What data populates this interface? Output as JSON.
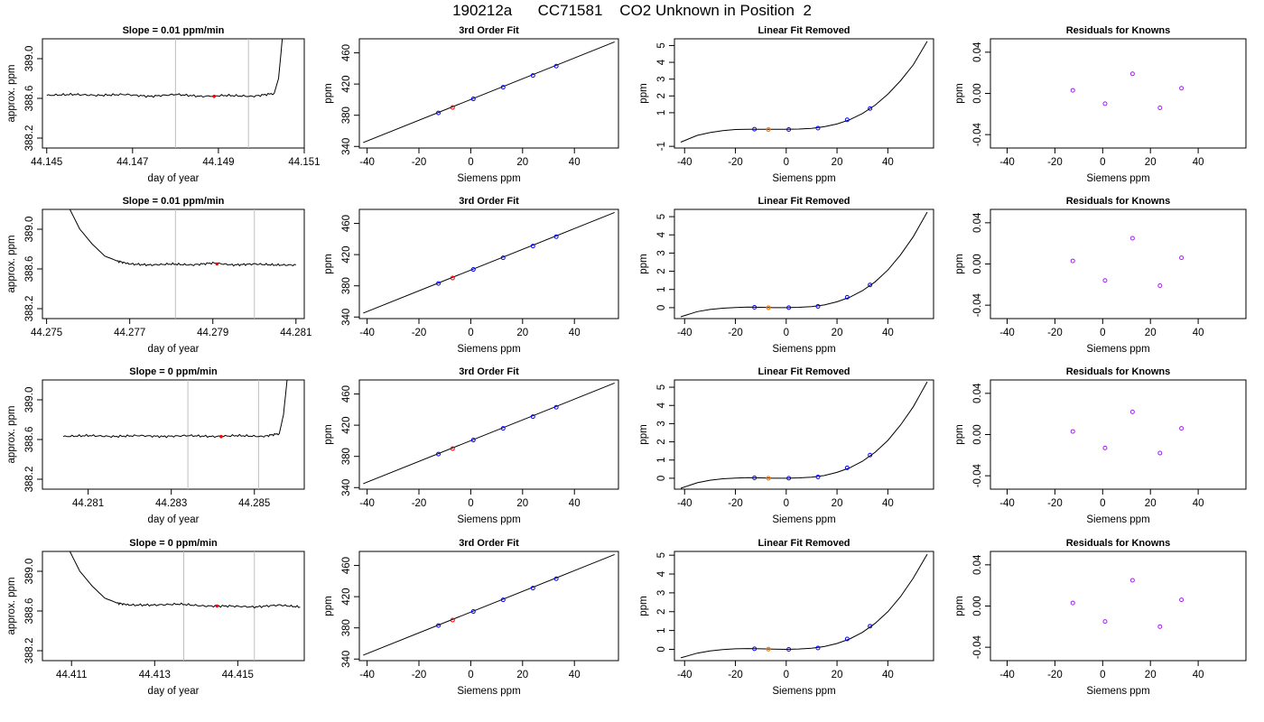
{
  "figure": {
    "title": "190212a      CC71581    CO2 Unknown in Position  2"
  },
  "style": {
    "line_color": "#000000",
    "grid_color": "#bebebe",
    "unknown_point_color": "#ff0000",
    "removed_unknown_color": "#ff7f00",
    "known_point_color": "#0000ff",
    "residual_point_color": "#a020f0"
  },
  "chart_data": [
    {
      "type": "line",
      "panel": "trace",
      "row": 1,
      "title": "Slope =  0.01  ppm/min",
      "xlabel": "day of year",
      "ylabel": "approx. ppm",
      "xlim": [
        44.1449,
        44.151
      ],
      "ylim": [
        388.1,
        389.2
      ],
      "xticks": [
        44.145,
        44.147,
        44.149,
        44.151
      ],
      "yticks": [
        388.2,
        388.6,
        389.0
      ],
      "vlines": [
        44.148,
        44.1497
      ],
      "unknown_point": [
        44.1489,
        388.62
      ],
      "series": [
        {
          "x": [
            44.145,
            44.1456,
            44.1462,
            44.1468,
            44.1474,
            44.148,
            44.1486,
            44.1492,
            44.1498,
            44.1503,
            44.1504,
            44.1505
          ],
          "y": [
            388.63,
            388.64,
            388.63,
            388.64,
            388.62,
            388.64,
            388.62,
            388.63,
            388.62,
            388.65,
            388.8,
            389.25
          ]
        }
      ]
    },
    {
      "type": "line",
      "panel": "fit",
      "row": 1,
      "title": "3rd Order Fit",
      "xlabel": "Siemens ppm",
      "ylabel": "ppm",
      "xlim": [
        -43,
        57
      ],
      "ylim": [
        338,
        478
      ],
      "xticks": [
        -40,
        -20,
        0,
        20,
        40
      ],
      "yticks": [
        340,
        380,
        420,
        460
      ],
      "line": {
        "x": [
          -41.5,
          55.5
        ],
        "y": [
          345,
          474
        ]
      },
      "known_points": {
        "x": [
          -12.5,
          1,
          12.5,
          24,
          33
        ],
        "y": [
          383,
          401,
          416,
          431,
          443
        ]
      },
      "unknown_point": [
        -7,
        390
      ]
    },
    {
      "type": "line",
      "panel": "linear_removed",
      "row": 1,
      "title": "Linear Fit Removed",
      "xlabel": "Siemens ppm",
      "ylabel": "ppm",
      "xlim": [
        -44,
        58
      ],
      "ylim": [
        -1.1,
        5.4
      ],
      "xticks": [
        -40,
        -20,
        0,
        20,
        40
      ],
      "yticks": [
        -1,
        1,
        2,
        3,
        4,
        5
      ],
      "curve": {
        "x": [
          -41.5,
          -35,
          -30,
          -25,
          -20,
          -15,
          -10,
          -5,
          0,
          5,
          10,
          15,
          20,
          25,
          30,
          35,
          40,
          45,
          50,
          55.5
        ],
        "y": [
          -0.75,
          -0.35,
          -0.18,
          -0.07,
          0.0,
          0.02,
          0.02,
          0.01,
          0.01,
          0.03,
          0.07,
          0.17,
          0.33,
          0.58,
          0.95,
          1.45,
          2.1,
          2.9,
          3.85,
          5.25
        ]
      },
      "known_points": {
        "x": [
          -12.5,
          1,
          12.5,
          24,
          33
        ],
        "y": [
          0.02,
          0.0,
          0.08,
          0.58,
          1.25
        ]
      },
      "unknown_point": [
        -7,
        0.0
      ]
    },
    {
      "type": "scatter",
      "panel": "residuals",
      "row": 1,
      "title": "Residuals for Knowns",
      "xlabel": "Siemens ppm",
      "ylabel": "ppm",
      "xlim": [
        -47,
        60
      ],
      "ylim": [
        -0.053,
        0.053
      ],
      "xticks": [
        -40,
        -20,
        0,
        20,
        40
      ],
      "yticks": [
        -0.04,
        0.0,
        0.04
      ],
      "points": {
        "x": [
          -12.5,
          1,
          12.5,
          24,
          33
        ],
        "y": [
          0.003,
          -0.01,
          0.019,
          -0.014,
          0.005
        ]
      }
    },
    {
      "type": "line",
      "panel": "trace",
      "row": 2,
      "title": "Slope =  0.01  ppm/min",
      "xlabel": "day of year",
      "ylabel": "approx. ppm",
      "xlim": [
        44.2749,
        44.2812
      ],
      "ylim": [
        388.1,
        389.2
      ],
      "xticks": [
        44.275,
        44.277,
        44.279,
        44.281
      ],
      "yticks": [
        388.2,
        388.6,
        389.0
      ],
      "vlines": [
        44.2781,
        44.28
      ],
      "unknown_point": [
        44.2791,
        388.65
      ],
      "series": [
        {
          "x": [
            44.2755,
            44.2758,
            44.2761,
            44.2764,
            44.2767,
            44.277,
            44.2775,
            44.278,
            44.2785,
            44.279,
            44.2795,
            44.28,
            44.2805,
            44.281
          ],
          "y": [
            389.25,
            389.0,
            388.85,
            388.73,
            388.68,
            388.65,
            388.64,
            388.65,
            388.64,
            388.66,
            388.64,
            388.65,
            388.64,
            388.64
          ]
        }
      ]
    },
    {
      "type": "line",
      "panel": "fit",
      "row": 2,
      "title": "3rd Order Fit",
      "xlabel": "Siemens ppm",
      "ylabel": "ppm",
      "xlim": [
        -43,
        57
      ],
      "ylim": [
        338,
        478
      ],
      "xticks": [
        -40,
        -20,
        0,
        20,
        40
      ],
      "yticks": [
        340,
        380,
        420,
        460
      ],
      "line": {
        "x": [
          -41.5,
          55.5
        ],
        "y": [
          345,
          474
        ]
      },
      "known_points": {
        "x": [
          -12.5,
          1,
          12.5,
          24,
          33
        ],
        "y": [
          383,
          401,
          416,
          431,
          443
        ]
      },
      "unknown_point": [
        -7,
        390
      ]
    },
    {
      "type": "line",
      "panel": "linear_removed",
      "row": 2,
      "title": "Linear Fit Removed",
      "xlabel": "Siemens ppm",
      "ylabel": "ppm",
      "xlim": [
        -44,
        58
      ],
      "ylim": [
        -0.6,
        5.4
      ],
      "xticks": [
        -40,
        -20,
        0,
        20,
        40
      ],
      "yticks": [
        0,
        1,
        2,
        3,
        4,
        5
      ],
      "curve": {
        "x": [
          -41.5,
          -35,
          -30,
          -25,
          -20,
          -15,
          -10,
          -5,
          0,
          5,
          10,
          15,
          20,
          25,
          30,
          35,
          40,
          45,
          50,
          55.5
        ],
        "y": [
          -0.5,
          -0.22,
          -0.1,
          -0.03,
          0.01,
          0.03,
          0.02,
          0.0,
          0.0,
          0.02,
          0.06,
          0.15,
          0.32,
          0.57,
          0.93,
          1.42,
          2.07,
          2.9,
          3.9,
          5.25
        ]
      },
      "known_points": {
        "x": [
          -12.5,
          1,
          12.5,
          24,
          33
        ],
        "y": [
          0.02,
          0.0,
          0.07,
          0.57,
          1.25
        ]
      },
      "unknown_point": [
        -7,
        0.0
      ]
    },
    {
      "type": "scatter",
      "panel": "residuals",
      "row": 2,
      "title": "Residuals for Knowns",
      "xlabel": "Siemens ppm",
      "ylabel": "ppm",
      "xlim": [
        -47,
        60
      ],
      "ylim": [
        -0.053,
        0.053
      ],
      "xticks": [
        -40,
        -20,
        0,
        20,
        40
      ],
      "yticks": [
        -0.04,
        0.0,
        0.04
      ],
      "points": {
        "x": [
          -12.5,
          1,
          12.5,
          24,
          33
        ],
        "y": [
          0.003,
          -0.016,
          0.025,
          -0.021,
          0.006
        ]
      }
    },
    {
      "type": "line",
      "panel": "trace",
      "row": 3,
      "title": "Slope =  0  ppm/min",
      "xlabel": "day of year",
      "ylabel": "approx. ppm",
      "xlim": [
        44.2799,
        44.2862
      ],
      "ylim": [
        388.1,
        389.2
      ],
      "xticks": [
        44.281,
        44.283,
        44.285
      ],
      "yticks": [
        388.2,
        388.6,
        389.0
      ],
      "vlines": [
        44.2834,
        44.2851
      ],
      "unknown_point": [
        44.2842,
        388.63
      ],
      "series": [
        {
          "x": [
            44.2804,
            44.281,
            44.2816,
            44.2822,
            44.2828,
            44.2834,
            44.284,
            44.2846,
            44.2852,
            44.2856,
            44.2857,
            44.2858
          ],
          "y": [
            388.63,
            388.64,
            388.63,
            388.64,
            388.63,
            388.64,
            388.63,
            388.64,
            388.63,
            388.66,
            388.85,
            389.25
          ]
        }
      ]
    },
    {
      "type": "line",
      "panel": "fit",
      "row": 3,
      "title": "3rd Order Fit",
      "xlabel": "Siemens ppm",
      "ylabel": "ppm",
      "xlim": [
        -43,
        57
      ],
      "ylim": [
        338,
        478
      ],
      "xticks": [
        -40,
        -20,
        0,
        20,
        40
      ],
      "yticks": [
        340,
        380,
        420,
        460
      ],
      "line": {
        "x": [
          -41.5,
          55.5
        ],
        "y": [
          345,
          474
        ]
      },
      "known_points": {
        "x": [
          -12.5,
          1,
          12.5,
          24,
          33
        ],
        "y": [
          383,
          401,
          416,
          431,
          443
        ]
      },
      "unknown_point": [
        -7,
        390
      ]
    },
    {
      "type": "line",
      "panel": "linear_removed",
      "row": 3,
      "title": "Linear Fit Removed",
      "xlabel": "Siemens ppm",
      "ylabel": "ppm",
      "xlim": [
        -44,
        58
      ],
      "ylim": [
        -0.6,
        5.4
      ],
      "xticks": [
        -40,
        -20,
        0,
        20,
        40
      ],
      "yticks": [
        0,
        1,
        2,
        3,
        4,
        5
      ],
      "curve": {
        "x": [
          -41.5,
          -35,
          -30,
          -25,
          -20,
          -15,
          -10,
          -5,
          0,
          5,
          10,
          15,
          20,
          25,
          30,
          35,
          40,
          45,
          50,
          55.5
        ],
        "y": [
          -0.55,
          -0.25,
          -0.11,
          -0.03,
          0.01,
          0.03,
          0.02,
          0.0,
          0.0,
          0.02,
          0.06,
          0.15,
          0.32,
          0.57,
          0.93,
          1.43,
          2.08,
          2.92,
          3.92,
          5.3
        ]
      },
      "known_points": {
        "x": [
          -12.5,
          1,
          12.5,
          24,
          33
        ],
        "y": [
          0.02,
          0.0,
          0.07,
          0.57,
          1.27
        ]
      },
      "unknown_point": [
        -7,
        0.0
      ]
    },
    {
      "type": "scatter",
      "panel": "residuals",
      "row": 3,
      "title": "Residuals for Knowns",
      "xlabel": "Siemens ppm",
      "ylabel": "ppm",
      "xlim": [
        -47,
        60
      ],
      "ylim": [
        -0.053,
        0.053
      ],
      "xticks": [
        -40,
        -20,
        0,
        20,
        40
      ],
      "yticks": [
        -0.04,
        0.0,
        0.04
      ],
      "points": {
        "x": [
          -12.5,
          1,
          12.5,
          24,
          33
        ],
        "y": [
          0.003,
          -0.013,
          0.022,
          -0.018,
          0.006
        ]
      }
    },
    {
      "type": "line",
      "panel": "trace",
      "row": 4,
      "title": "Slope =  0  ppm/min",
      "xlabel": "day of year",
      "ylabel": "approx. ppm",
      "xlim": [
        44.4103,
        44.4166
      ],
      "ylim": [
        388.1,
        389.2
      ],
      "xticks": [
        44.411,
        44.413,
        44.415
      ],
      "yticks": [
        388.2,
        388.6,
        389.0
      ],
      "vlines": [
        44.4137,
        44.4154
      ],
      "unknown_point": [
        44.4145,
        388.65
      ],
      "series": [
        {
          "x": [
            44.4109,
            44.4112,
            44.4115,
            44.4118,
            44.4121,
            44.4124,
            44.413,
            44.4136,
            44.4142,
            44.4148,
            44.4154,
            44.416,
            44.4165
          ],
          "y": [
            389.25,
            389.0,
            388.85,
            388.73,
            388.68,
            388.66,
            388.66,
            388.67,
            388.65,
            388.65,
            388.64,
            388.66,
            388.64
          ]
        }
      ]
    },
    {
      "type": "line",
      "panel": "fit",
      "row": 4,
      "title": "3rd Order Fit",
      "xlabel": "Siemens ppm",
      "ylabel": "ppm",
      "xlim": [
        -43,
        57
      ],
      "ylim": [
        338,
        478
      ],
      "xticks": [
        -40,
        -20,
        0,
        20,
        40
      ],
      "yticks": [
        340,
        380,
        420,
        460
      ],
      "line": {
        "x": [
          -41.5,
          55.5
        ],
        "y": [
          345,
          474
        ]
      },
      "known_points": {
        "x": [
          -12.5,
          1,
          12.5,
          24,
          33
        ],
        "y": [
          383,
          401,
          416,
          431,
          443
        ]
      },
      "unknown_point": [
        -7,
        390
      ]
    },
    {
      "type": "line",
      "panel": "linear_removed",
      "row": 4,
      "title": "Linear Fit Removed",
      "xlabel": "Siemens ppm",
      "ylabel": "ppm",
      "xlim": [
        -44,
        58
      ],
      "ylim": [
        -0.6,
        5.2
      ],
      "xticks": [
        -40,
        -20,
        0,
        20,
        40
      ],
      "yticks": [
        0,
        1,
        2,
        3,
        4,
        5
      ],
      "curve": {
        "x": [
          -41.5,
          -35,
          -30,
          -25,
          -20,
          -15,
          -10,
          -5,
          0,
          5,
          10,
          15,
          20,
          25,
          30,
          35,
          40,
          45,
          50,
          55.5
        ],
        "y": [
          -0.45,
          -0.2,
          -0.08,
          -0.01,
          0.03,
          0.04,
          0.03,
          0.01,
          0.0,
          0.02,
          0.06,
          0.15,
          0.31,
          0.55,
          0.9,
          1.38,
          2.0,
          2.8,
          3.78,
          5.05
        ]
      },
      "known_points": {
        "x": [
          -12.5,
          1,
          12.5,
          24,
          33
        ],
        "y": [
          0.03,
          0.0,
          0.07,
          0.55,
          1.23
        ]
      },
      "unknown_point": [
        -7,
        0.01
      ]
    },
    {
      "type": "scatter",
      "panel": "residuals",
      "row": 4,
      "title": "Residuals for Knowns",
      "xlabel": "Siemens ppm",
      "ylabel": "ppm",
      "xlim": [
        -47,
        60
      ],
      "ylim": [
        -0.053,
        0.053
      ],
      "xticks": [
        -40,
        -20,
        0,
        20,
        40
      ],
      "yticks": [
        -0.04,
        0.0,
        0.04
      ],
      "points": {
        "x": [
          -12.5,
          1,
          12.5,
          24,
          33
        ],
        "y": [
          0.003,
          -0.015,
          0.025,
          -0.02,
          0.006
        ]
      }
    }
  ]
}
